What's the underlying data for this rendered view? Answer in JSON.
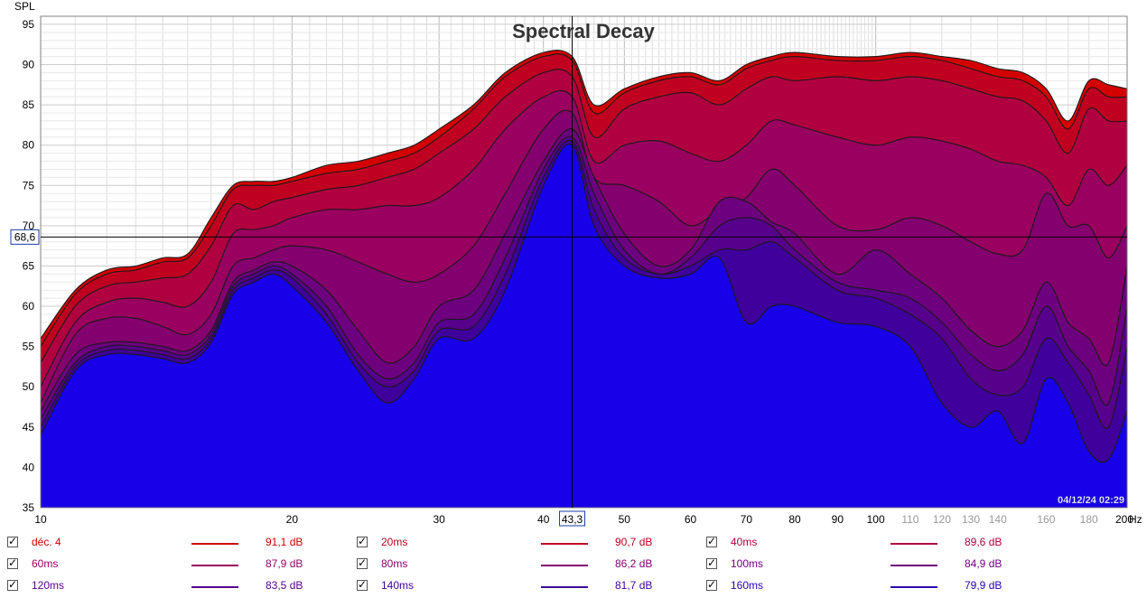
{
  "chart_data": {
    "type": "area",
    "title": "Spectral Decay",
    "ylabel": "SPL",
    "x_unit_label": "Hz",
    "x_scale": "log",
    "xlim": [
      10,
      200
    ],
    "ylim": [
      35,
      96
    ],
    "grid": true,
    "x_ticks": [
      {
        "value": 10,
        "label": "10",
        "style": "major"
      },
      {
        "value": 20,
        "label": "20",
        "style": "major"
      },
      {
        "value": 30,
        "label": "30",
        "style": "major"
      },
      {
        "value": 40,
        "label": "40",
        "style": "major"
      },
      {
        "value": 50,
        "label": "50",
        "style": "major"
      },
      {
        "value": 60,
        "label": "60",
        "style": "major"
      },
      {
        "value": 70,
        "label": "70",
        "style": "major"
      },
      {
        "value": 80,
        "label": "80",
        "style": "major"
      },
      {
        "value": 90,
        "label": "90",
        "style": "major"
      },
      {
        "value": 100,
        "label": "100",
        "style": "major"
      },
      {
        "value": 110,
        "label": "110",
        "style": "minor"
      },
      {
        "value": 120,
        "label": "120",
        "style": "minor"
      },
      {
        "value": 130,
        "label": "130",
        "style": "minor"
      },
      {
        "value": 140,
        "label": "140",
        "style": "minor"
      },
      {
        "value": 160,
        "label": "160",
        "style": "minor"
      },
      {
        "value": 180,
        "label": "180",
        "style": "minor"
      },
      {
        "value": 200,
        "label": "200",
        "style": "major"
      }
    ],
    "y_ticks": [
      {
        "value": 35,
        "label": "35"
      },
      {
        "value": 40,
        "label": "40"
      },
      {
        "value": 45,
        "label": "45"
      },
      {
        "value": 50,
        "label": "50"
      },
      {
        "value": 55,
        "label": "55"
      },
      {
        "value": 60,
        "label": "60"
      },
      {
        "value": 65,
        "label": "65"
      },
      {
        "value": 70,
        "label": "70"
      },
      {
        "value": 75,
        "label": "75"
      },
      {
        "value": 80,
        "label": "80"
      },
      {
        "value": 85,
        "label": "85"
      },
      {
        "value": 90,
        "label": "90"
      },
      {
        "value": 95,
        "label": "95"
      }
    ],
    "cursor": {
      "x": 43.3,
      "x_label": "43,3",
      "y": 68.6,
      "y_label": "68,6"
    },
    "timestamp": "04/12/24 02:29",
    "x": [
      10,
      11,
      12,
      13,
      14,
      15,
      16,
      17,
      18,
      19,
      20,
      22,
      24,
      26,
      28,
      30,
      33,
      36,
      40,
      43.3,
      46,
      50,
      55,
      60,
      65,
      70,
      75,
      80,
      90,
      100,
      110,
      120,
      130,
      140,
      150,
      160,
      170,
      180,
      190,
      200
    ],
    "series": [
      {
        "name": "déc. 4",
        "legend_value": "91,1 dB",
        "color": "#d40000",
        "values": [
          56,
          62,
          64.5,
          65,
          66,
          66.5,
          71,
          75,
          75.5,
          75.5,
          76,
          77.5,
          78,
          79,
          80,
          82,
          85,
          89,
          91.5,
          91,
          85,
          87,
          88.5,
          89,
          88,
          90,
          91,
          91.5,
          91,
          91,
          91.5,
          91,
          90.5,
          89.5,
          89,
          87,
          83,
          88,
          87.5,
          87
        ]
      },
      {
        "name": "20ms",
        "legend_value": "90,7 dB",
        "color": "#c00020",
        "values": [
          55,
          61.5,
          64,
          64.5,
          65.5,
          66,
          70,
          74.5,
          75,
          75,
          75.5,
          76.5,
          77,
          78,
          79,
          81,
          84.5,
          88.5,
          91,
          90.5,
          84,
          86.5,
          88,
          88.5,
          87.5,
          89.5,
          90.5,
          91,
          90.5,
          90.5,
          91,
          90.5,
          89.5,
          88.5,
          88,
          86,
          82,
          87,
          86,
          86
        ]
      },
      {
        "name": "40ms",
        "legend_value": "89,6 dB",
        "color": "#b00040",
        "values": [
          53,
          60,
          62.5,
          63,
          63.5,
          64,
          67.5,
          72.5,
          72,
          73,
          73.5,
          74.5,
          75,
          76,
          77,
          79,
          82,
          86,
          89,
          88.5,
          81,
          84.5,
          86,
          86.5,
          85,
          87,
          88.5,
          88,
          88.5,
          88,
          88.5,
          88,
          87,
          86,
          85.5,
          83,
          79,
          84.5,
          83,
          83
        ]
      },
      {
        "name": "60ms",
        "legend_value": "87,9 dB",
        "color": "#9a0060",
        "values": [
          50,
          58,
          60.5,
          61,
          60.5,
          60,
          63,
          69,
          69.5,
          70,
          71,
          72,
          72,
          72.5,
          72.5,
          73.5,
          77,
          82,
          86,
          86,
          78,
          80,
          80.5,
          79,
          78,
          80,
          83,
          82.5,
          81,
          80,
          81,
          80.5,
          79.5,
          78,
          77.5,
          76,
          72.5,
          77,
          75,
          77.5
        ]
      },
      {
        "name": "80ms",
        "legend_value": "86,2 dB",
        "color": "#84006e",
        "values": [
          48,
          56.5,
          58.5,
          58.5,
          57.5,
          56.5,
          59,
          65,
          66,
          67,
          67.5,
          67,
          65.5,
          64,
          63,
          64,
          67.5,
          74,
          82,
          84,
          76,
          75,
          73,
          70,
          72,
          73.5,
          77,
          75,
          70,
          69.5,
          71,
          70,
          68,
          66.5,
          67,
          74,
          70,
          70,
          66,
          70
        ]
      },
      {
        "name": "100ms",
        "legend_value": "84,9 dB",
        "color": "#6c007e",
        "values": [
          47,
          54,
          55.5,
          55.5,
          55,
          54.5,
          57,
          63,
          64.5,
          65.5,
          65,
          62,
          57,
          53,
          55,
          60,
          62,
          69,
          78,
          82,
          76,
          69,
          65,
          67,
          73,
          73,
          70.5,
          69,
          64,
          67,
          64,
          61,
          57,
          55,
          57,
          63,
          58,
          56,
          53,
          65
        ]
      },
      {
        "name": "120ms",
        "legend_value": "83,5 dB",
        "color": "#56008c",
        "values": [
          46,
          53,
          55,
          55,
          54.5,
          54,
          56.5,
          62.5,
          64,
          65,
          64,
          60,
          54,
          51,
          53,
          58,
          59,
          66,
          77,
          81,
          74,
          67,
          64,
          66,
          70,
          71,
          70,
          67,
          63,
          62,
          61,
          58,
          54,
          52,
          54,
          60,
          55,
          52,
          48,
          60
        ]
      },
      {
        "name": "140ms",
        "legend_value": "81,7 dB",
        "color": "#40009c",
        "values": [
          45,
          52.5,
          54.5,
          54.5,
          54,
          53.5,
          56,
          62,
          63.5,
          64.5,
          63.5,
          59,
          53,
          50,
          52,
          57,
          57.5,
          64,
          76,
          80.5,
          72,
          66,
          64,
          65,
          67,
          67,
          68,
          66,
          62,
          61,
          59,
          56,
          51,
          49,
          50,
          56,
          53,
          49,
          45,
          55
        ]
      },
      {
        "name": "160ms",
        "legend_value": "79,9 dB",
        "color": "#2800ac",
        "values": [
          44,
          52,
          54,
          54,
          53.5,
          53,
          55.5,
          61.5,
          63,
          64,
          62.5,
          58,
          52,
          48,
          51,
          56,
          56,
          62,
          75,
          80,
          70,
          65,
          63.5,
          64,
          66,
          58,
          60,
          60,
          58,
          57.5,
          55,
          48,
          45,
          47,
          43,
          51,
          48,
          42,
          41,
          47
        ]
      }
    ]
  }
}
